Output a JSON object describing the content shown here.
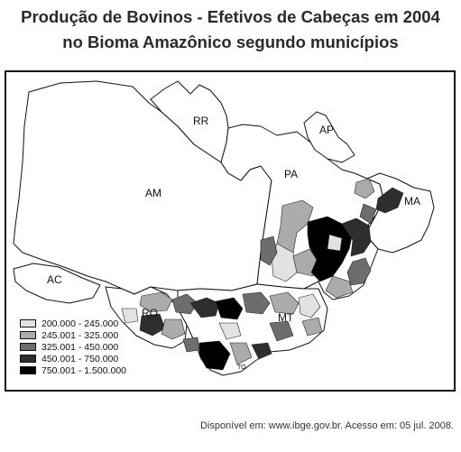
{
  "title_line1": "Produção de Bovinos - Efetivos de Cabeças em 2004",
  "title_line2": "no Bioma Amazônico segundo municípios",
  "states": {
    "RR": "RR",
    "AP": "AP",
    "AM": "AM",
    "PA": "PA",
    "MA": "MA",
    "AC": "AC",
    "RO": "RO",
    "MT": "MT",
    "TO": "TO"
  },
  "legend": [
    {
      "label": "200.000 - 245.000",
      "color": "#e2e2e2"
    },
    {
      "label": "245.001 - 325.000",
      "color": "#ababab"
    },
    {
      "label": "325.001 - 450.000",
      "color": "#6d6d6d"
    },
    {
      "label": "450.001 - 750.000",
      "color": "#2e2e2e"
    },
    {
      "label": "750.001 - 1.500.000",
      "color": "#000000"
    }
  ],
  "source": "Disponível em: www.ibge.gov.br. Acesso em: 05 jul. 2008."
}
